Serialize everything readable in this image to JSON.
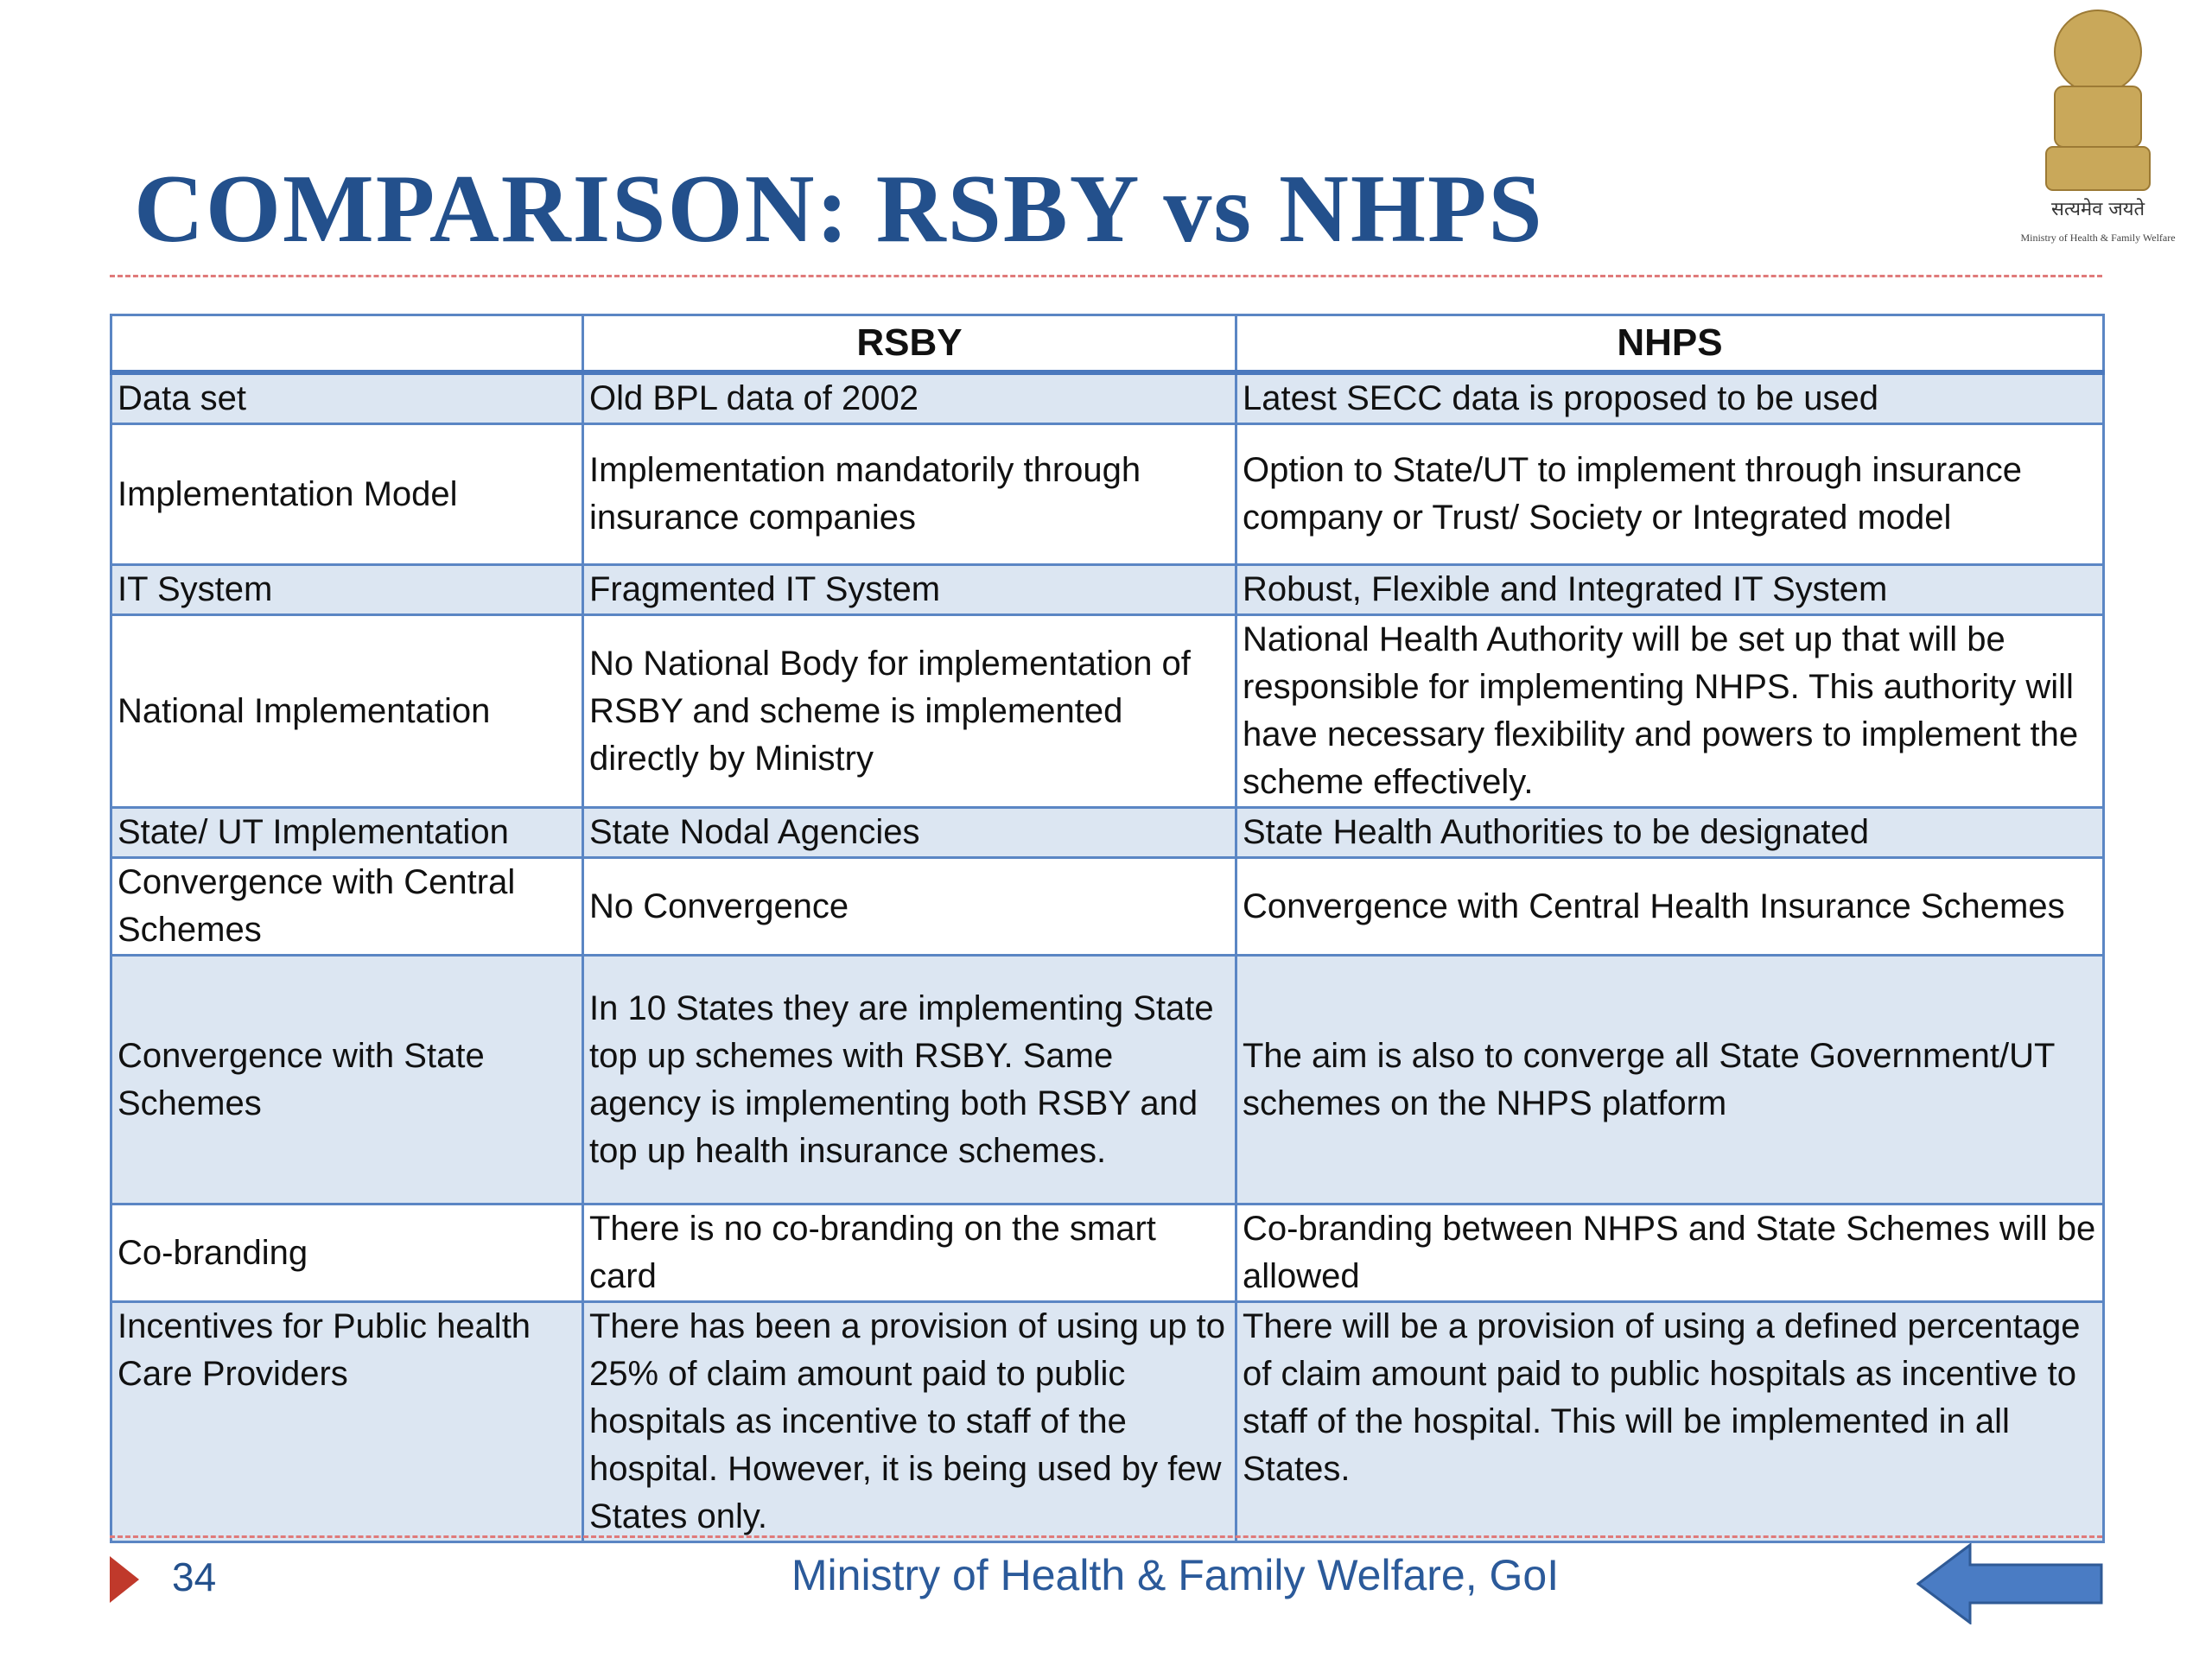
{
  "header": {
    "title": "COMPARISON: RSBY vs NHPS"
  },
  "emblem": {
    "motto": "सत्यमेव जयते",
    "ministry": "Ministry of Health & Family Welfare"
  },
  "table": {
    "columns": [
      "RSBY",
      "NHPS"
    ],
    "rows": [
      [
        "Data set",
        "Old BPL data of 2002",
        "Latest SECC data is proposed to be used"
      ],
      [
        "Implementation Model",
        "Implementation mandatorily through insurance companies",
        "Option to State/UT to implement through insurance company or Trust/ Society or Integrated model"
      ],
      [
        "IT System",
        "Fragmented IT System",
        "Robust, Flexible and  Integrated IT System"
      ],
      [
        "National Implementation",
        "No National Body for implementation of RSBY and scheme is implemented directly by Ministry",
        "National Health Authority will be set up that will be responsible for implementing NHPS. This authority will have necessary flexibility and powers to implement the scheme effectively."
      ],
      [
        "State/ UT Implementation",
        "State Nodal Agencies",
        "State Health Authorities to be designated"
      ],
      [
        "Convergence with Central Schemes",
        "No Convergence",
        "Convergence with Central Health Insurance Schemes"
      ],
      [
        "Convergence with State Schemes",
        "In 10 States they are implementing State top up schemes with RSBY. Same agency is implementing both RSBY and top up health insurance schemes.",
        "The aim is also to converge all State Government/UT schemes on the NHPS platform"
      ],
      [
        "Co-branding",
        "There is no co-branding on the smart card",
        "Co-branding between NHPS and State Schemes will be allowed"
      ],
      [
        "Incentives for Public health Care Providers",
        "There has been a provision of using up to 25% of claim amount paid to public hospitals as incentive to staff of the hospital. However, it is being used by few States only.",
        "There will be a provision of using a defined percentage of claim amount paid to public hospitals as incentive to staff of the hospital. This will be implemented in all States."
      ]
    ]
  },
  "footer": {
    "page": "34",
    "text": "Ministry of Health & Family Welfare, GoI"
  }
}
